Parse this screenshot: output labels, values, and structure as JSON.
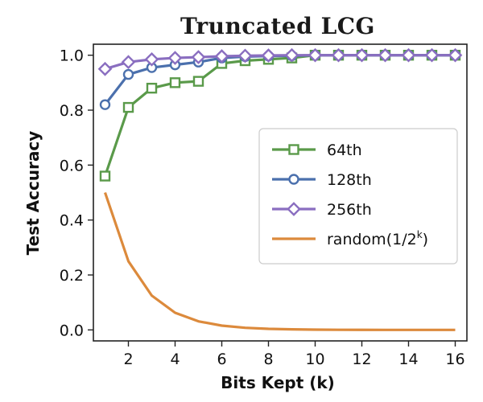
{
  "chart_data": {
    "type": "line",
    "title": "Truncated LCG",
    "xlabel": "Bits Kept (k)",
    "ylabel": "Test Accuracy",
    "xlim": [
      0.5,
      16.5
    ],
    "ylim": [
      -0.04,
      1.04
    ],
    "xticks": [
      2,
      4,
      6,
      8,
      10,
      12,
      14,
      16
    ],
    "yticks": [
      0.0,
      0.2,
      0.4,
      0.6,
      0.8,
      1.0
    ],
    "x": [
      1,
      2,
      3,
      4,
      5,
      6,
      7,
      8,
      9,
      10,
      11,
      12,
      13,
      14,
      15,
      16
    ],
    "legend_position": "center-right",
    "series": [
      {
        "name": "64th",
        "color": "#5a9a4a",
        "marker": "square",
        "values": [
          0.56,
          0.81,
          0.88,
          0.9,
          0.905,
          0.97,
          0.98,
          0.985,
          0.99,
          1.0,
          1.0,
          1.0,
          1.0,
          1.0,
          1.0,
          1.0
        ]
      },
      {
        "name": "128th",
        "color": "#4b70ad",
        "marker": "circle",
        "values": [
          0.82,
          0.93,
          0.955,
          0.965,
          0.975,
          0.99,
          0.995,
          0.997,
          0.998,
          1.0,
          1.0,
          1.0,
          1.0,
          1.0,
          1.0,
          1.0
        ]
      },
      {
        "name": "256th",
        "color": "#8a6ec0",
        "marker": "diamond",
        "values": [
          0.95,
          0.975,
          0.985,
          0.99,
          0.993,
          0.996,
          0.998,
          0.999,
          1.0,
          1.0,
          1.0,
          1.0,
          1.0,
          1.0,
          1.0,
          1.0
        ]
      },
      {
        "name": "random(1/2",
        "name_sup": "k",
        "name_suffix": ")",
        "color": "#dc8a3c",
        "marker": "none",
        "values": [
          0.5,
          0.25,
          0.125,
          0.0625,
          0.03125,
          0.015625,
          0.0078,
          0.0039,
          0.002,
          0.001,
          0.0005,
          0.0002,
          0.0001,
          0.0001,
          0.0,
          0.0
        ]
      }
    ]
  }
}
